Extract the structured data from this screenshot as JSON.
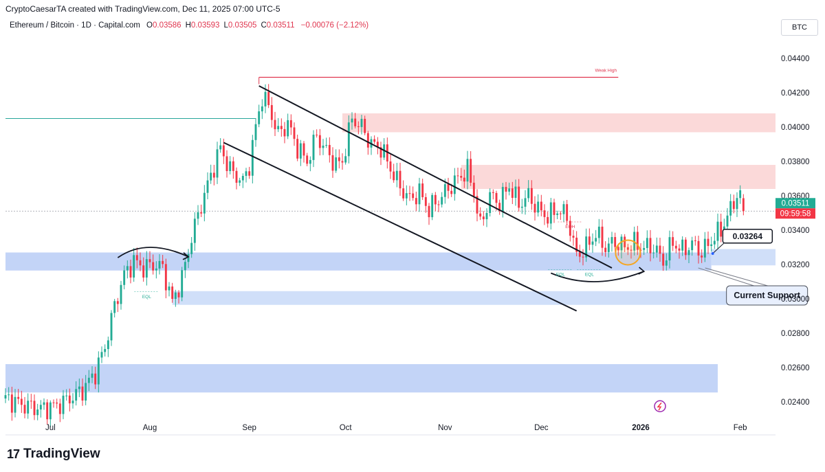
{
  "header": {
    "credit": "CryptoCaesarTA created with TradingView.com, Dec 11, 2025 07:00 UTC-5",
    "symbol": "Ethereum / Bitcoin · 1D · Capital.com",
    "ohlc": [
      {
        "k": "O",
        "v": "0.03586"
      },
      {
        "k": "H",
        "v": "0.03593"
      },
      {
        "k": "L",
        "v": "0.03505"
      },
      {
        "k": "C",
        "v": "0.03511"
      }
    ],
    "change": "−0.00076 (−2.12%)",
    "currency": "BTC"
  },
  "brand": {
    "mark": "17",
    "name": "TradingView"
  },
  "colors": {
    "up": "#22ab94",
    "down": "#f23645",
    "zone_red": "#fbd5d5",
    "zone_blue": "#b9cdf6",
    "accent": "#2962ff"
  },
  "chart_data": {
    "type": "candlestick",
    "title": "Ethereum / Bitcoin · 1D · Capital.com",
    "ylim": [
      0.023,
      0.045
    ],
    "y_ticks": [
      "0.04400",
      "0.04200",
      "0.04000",
      "0.03800",
      "0.03600",
      "0.03400",
      "0.03200",
      "0.03000",
      "0.02800",
      "0.02600",
      "0.02400"
    ],
    "x_ticks": [
      {
        "label": "Jul",
        "day": 0
      },
      {
        "label": "Aug",
        "day": 31
      },
      {
        "label": "Sep",
        "day": 62
      },
      {
        "label": "Oct",
        "day": 92
      },
      {
        "label": "Nov",
        "day": 123
      },
      {
        "label": "Dec",
        "day": 153
      },
      {
        "label": "2026",
        "day": 184
      },
      {
        "label": "Feb",
        "day": 215
      }
    ],
    "x_start_day": -14,
    "x_end_day": 226,
    "last_price_label": "0.03511",
    "countdown_label": "09:59:58",
    "anchors": [
      [
        -14,
        0.0242
      ],
      [
        -8,
        0.0238
      ],
      [
        -3,
        0.0236
      ],
      [
        2,
        0.0238
      ],
      [
        6,
        0.0242
      ],
      [
        10,
        0.0247
      ],
      [
        14,
        0.0257
      ],
      [
        17,
        0.0272
      ],
      [
        20,
        0.0296
      ],
      [
        23,
        0.0314
      ],
      [
        26,
        0.0322
      ],
      [
        29,
        0.0318
      ],
      [
        32,
        0.032
      ],
      [
        35,
        0.0318
      ],
      [
        38,
        0.0298
      ],
      [
        41,
        0.0312
      ],
      [
        44,
        0.0336
      ],
      [
        47,
        0.0355
      ],
      [
        50,
        0.0372
      ],
      [
        53,
        0.0388
      ],
      [
        56,
        0.0375
      ],
      [
        60,
        0.0368
      ],
      [
        62,
        0.0378
      ],
      [
        64,
        0.04
      ],
      [
        66,
        0.0418
      ],
      [
        68,
        0.0412
      ],
      [
        71,
        0.0396
      ],
      [
        74,
        0.0402
      ],
      [
        77,
        0.0388
      ],
      [
        80,
        0.038
      ],
      [
        83,
        0.0395
      ],
      [
        86,
        0.0386
      ],
      [
        89,
        0.0378
      ],
      [
        91,
        0.038
      ],
      [
        94,
        0.0405
      ],
      [
        97,
        0.04
      ],
      [
        100,
        0.039
      ],
      [
        103,
        0.0388
      ],
      [
        106,
        0.0376
      ],
      [
        109,
        0.0365
      ],
      [
        112,
        0.0358
      ],
      [
        115,
        0.0362
      ],
      [
        118,
        0.0352
      ],
      [
        121,
        0.0358
      ],
      [
        124,
        0.0364
      ],
      [
        127,
        0.037
      ],
      [
        130,
        0.0375
      ],
      [
        132,
        0.0362
      ],
      [
        134,
        0.0342
      ],
      [
        137,
        0.036
      ],
      [
        140,
        0.0356
      ],
      [
        143,
        0.0366
      ],
      [
        146,
        0.0355
      ],
      [
        149,
        0.036
      ],
      [
        152,
        0.0352
      ],
      [
        155,
        0.0348
      ],
      [
        158,
        0.0352
      ],
      [
        161,
        0.0348
      ],
      [
        164,
        0.0325
      ],
      [
        167,
        0.033
      ],
      [
        170,
        0.0338
      ],
      [
        173,
        0.033
      ],
      [
        176,
        0.0333
      ],
      [
        179,
        0.033
      ],
      [
        182,
        0.0332
      ],
      [
        185,
        0.033
      ],
      [
        188,
        0.033
      ],
      [
        191,
        0.0322
      ],
      [
        194,
        0.0333
      ],
      [
        197,
        0.0328
      ],
      [
        200,
        0.0332
      ],
      [
        203,
        0.0327
      ],
      [
        206,
        0.0334
      ],
      [
        209,
        0.034
      ],
      [
        212,
        0.0352
      ],
      [
        214,
        0.0361
      ],
      [
        215,
        0.0359
      ],
      [
        216,
        0.0351
      ]
    ],
    "zones": [
      {
        "kind": "supply",
        "y0": 0.0397,
        "y1": 0.0408,
        "d0": 91,
        "d1": 226
      },
      {
        "kind": "supply",
        "y0": 0.0364,
        "y1": 0.0378,
        "d0": 128,
        "d1": 226
      },
      {
        "kind": "demand",
        "y0": 0.03165,
        "y1": 0.0327,
        "d0": -14,
        "d1": 206
      },
      {
        "kind": "demand_light",
        "y0": 0.03195,
        "y1": 0.0329,
        "d0": 206,
        "d1": 226
      },
      {
        "kind": "demand_light",
        "y0": 0.02965,
        "y1": 0.03045,
        "d0": 38,
        "d1": 226
      },
      {
        "kind": "demand",
        "y0": 0.02455,
        "y1": 0.0262,
        "d0": -14,
        "d1": 208
      }
    ],
    "trendlines": [
      {
        "d0": 65,
        "p0": 0.0424,
        "d1": 175,
        "p1": 0.0318
      },
      {
        "d0": 54,
        "p0": 0.0391,
        "d1": 164,
        "p1": 0.0293
      }
    ],
    "weak_high": {
      "price": 0.0429,
      "d0": 65,
      "d1": 177,
      "label": "Weak High"
    },
    "horizontal_line": {
      "price": 0.0405,
      "d0": -14,
      "d1": 64
    },
    "price_dotted": 0.03511,
    "annotations": [
      {
        "text": "EQL",
        "day": 30,
        "price": 0.03005
      },
      {
        "text": "EQL",
        "day": 159,
        "price": 0.03135
      },
      {
        "text": "EQL",
        "day": 168,
        "price": 0.03135
      },
      {
        "text": "EQH",
        "day": 162,
        "price": 0.03412
      }
    ],
    "callouts": [
      {
        "text": "0.03264",
        "day": 206,
        "price": 0.03264,
        "box_day": 210,
        "box_price": 0.03365
      },
      {
        "text": "Current Support",
        "day": 203,
        "price": 0.0318,
        "box_day": 215,
        "box_price": 0.0302
      }
    ],
    "arrows": [
      {
        "d0": 21,
        "p0": 0.0324,
        "dm": 31,
        "pm": 0.033,
        "d1": 43,
        "p1": 0.03245
      },
      {
        "d0": 156,
        "p0": 0.0315,
        "dm": 170,
        "pm": 0.031,
        "d1": 185,
        "p1": 0.0316
      }
    ],
    "highlight_circle": {
      "day": 180,
      "price": 0.0327
    },
    "pin_icon_day": 190,
    "pin_icon_price": 0.02375
  }
}
